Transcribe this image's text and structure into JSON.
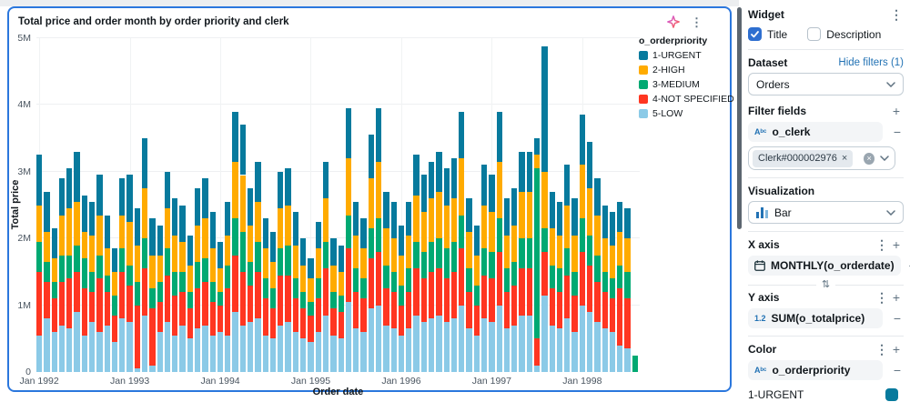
{
  "colors": {
    "selection_border": "#2b77dd",
    "link_blue": "#2272b4",
    "checkbox_blue": "#2e6fd0",
    "grid": "#eef0f2",
    "axis_text": "#4a5560"
  },
  "icons": {
    "kebab": "⋮",
    "plus": "+",
    "minus": "−",
    "swap": "⇅",
    "check": "✓",
    "string_type": "Aᵇᶜ",
    "numeric_type": "1.2",
    "chip_remove": "×",
    "clear": "×"
  },
  "chart_data": {
    "type": "bar",
    "stacked": true,
    "title": "Total price and order month by order priority and clerk",
    "xlabel": "Order date",
    "ylabel": "Total price",
    "legend_title": "o_orderpriority",
    "legend_position": "top-right",
    "grid": true,
    "x_range": [
      "Jan 1992",
      "Aug 1998"
    ],
    "n_months": 80,
    "x_tick_labels": [
      "Jan 1992",
      "Jan 1993",
      "Jan 1994",
      "Jan 1995",
      "Jan 1996",
      "Jan 1997",
      "Jan 1998"
    ],
    "x_tick_positions": [
      0,
      12,
      24,
      36,
      48,
      60,
      72
    ],
    "y_tick_labels": [
      "0",
      "1M",
      "2M",
      "3M",
      "4M",
      "5M"
    ],
    "y_tick_values": [
      0,
      1,
      2,
      3,
      4,
      5
    ],
    "ylim": [
      0,
      5
    ],
    "values_unit": "millions (M) of total price",
    "stack_order_bottom_to_top": [
      "5-LOW",
      "4-NOT SPECIFIED",
      "3-MEDIUM",
      "2-HIGH",
      "1-URGENT"
    ],
    "series": [
      {
        "name": "1-URGENT",
        "color": "#077A9D",
        "values": [
          0.75,
          0.6,
          0.45,
          0.55,
          0.6,
          0.75,
          0.55,
          0.5,
          0.6,
          0.5,
          0.35,
          0.55,
          0.7,
          0.55,
          0.75,
          0.55,
          0.45,
          0.55,
          0.55,
          0.55,
          0.45,
          0.55,
          0.6,
          0.55,
          0.4,
          0.5,
          0.75,
          0.75,
          0.55,
          0.6,
          0.45,
          0.45,
          0.55,
          0.55,
          0.5,
          0.4,
          0.3,
          0.4,
          0.55,
          0.4,
          0.4,
          0.75,
          0.5,
          0.45,
          0.65,
          0.8,
          0.55,
          0.55,
          0.45,
          0.5,
          0.6,
          0.55,
          0.55,
          0.6,
          0.55,
          0.6,
          0.7,
          0.5,
          0.45,
          0.6,
          0.55,
          0.75,
          0.55,
          0.55,
          0.6,
          0.6,
          0.25,
          1.88,
          0.55,
          0.5,
          0.6,
          0.55,
          0.75,
          0.7,
          0.55,
          0.5,
          0.5,
          0.45,
          0.45,
          0.0
        ]
      },
      {
        "name": "2-HIGH",
        "color": "#FFAB00",
        "values": [
          0.55,
          0.45,
          0.35,
          0.6,
          0.7,
          0.65,
          0.4,
          0.55,
          0.6,
          0.4,
          0.35,
          0.5,
          0.65,
          0.55,
          0.75,
          0.5,
          0.4,
          0.6,
          0.55,
          0.45,
          0.4,
          0.55,
          0.6,
          0.5,
          0.35,
          0.45,
          0.85,
          0.85,
          0.55,
          0.6,
          0.45,
          0.4,
          0.6,
          0.6,
          0.5,
          0.4,
          0.35,
          0.45,
          0.65,
          0.4,
          0.35,
          0.85,
          0.5,
          0.45,
          0.75,
          0.85,
          0.55,
          0.5,
          0.45,
          0.5,
          0.7,
          0.6,
          0.65,
          0.7,
          0.65,
          0.65,
          0.85,
          0.55,
          0.45,
          0.65,
          0.6,
          0.85,
          0.5,
          0.55,
          0.7,
          0.7,
          0.2,
          0.85,
          0.55,
          0.5,
          0.65,
          0.55,
          0.8,
          0.7,
          0.6,
          0.5,
          0.5,
          0.5,
          0.5,
          0.0
        ]
      },
      {
        "name": "3-MEDIUM",
        "color": "#00A972",
        "values": [
          0.45,
          0.3,
          0.25,
          0.4,
          0.35,
          0.4,
          0.45,
          0.3,
          0.35,
          0.25,
          0.3,
          0.35,
          0.3,
          0.35,
          0.45,
          0.3,
          0.3,
          0.4,
          0.35,
          0.3,
          0.25,
          0.4,
          0.35,
          0.3,
          0.2,
          0.35,
          0.55,
          0.6,
          0.35,
          0.45,
          0.3,
          0.3,
          0.4,
          0.45,
          0.3,
          0.25,
          0.2,
          0.3,
          0.4,
          0.25,
          0.25,
          0.5,
          0.35,
          0.3,
          0.45,
          0.5,
          0.35,
          0.3,
          0.3,
          0.35,
          0.4,
          0.4,
          0.45,
          0.45,
          0.45,
          0.45,
          0.5,
          0.35,
          0.3,
          0.4,
          0.4,
          0.5,
          0.35,
          0.35,
          0.45,
          0.45,
          2.55,
          0.35,
          0.35,
          0.35,
          0.4,
          0.35,
          0.5,
          0.45,
          0.4,
          0.3,
          0.3,
          0.35,
          0.4,
          0.25
        ]
      },
      {
        "name": "4-NOT SPECIFIED",
        "color": "#FF3621",
        "values": [
          0.95,
          0.55,
          0.5,
          0.65,
          0.75,
          0.6,
          0.7,
          0.45,
          0.8,
          0.5,
          0.4,
          0.7,
          0.55,
          0.95,
          0.7,
          0.85,
          0.45,
          0.7,
          0.6,
          0.5,
          0.45,
          0.6,
          0.65,
          0.5,
          0.4,
          0.7,
          0.85,
          0.8,
          0.55,
          0.7,
          0.55,
          0.45,
          0.75,
          0.7,
          0.5,
          0.45,
          0.4,
          0.5,
          0.7,
          0.4,
          0.4,
          0.8,
          0.55,
          0.5,
          0.75,
          0.8,
          0.55,
          0.55,
          0.45,
          0.55,
          0.7,
          0.65,
          0.7,
          0.7,
          0.65,
          0.7,
          0.85,
          0.55,
          0.45,
          0.65,
          0.65,
          0.8,
          0.55,
          0.6,
          0.7,
          0.7,
          0.4,
          0.65,
          0.55,
          0.55,
          0.65,
          0.55,
          0.8,
          0.7,
          0.6,
          0.55,
          0.5,
          0.85,
          0.75,
          0.0
        ]
      },
      {
        "name": "5-LOW",
        "color": "#8BCAE7",
        "values": [
          0.55,
          0.8,
          0.6,
          0.7,
          0.65,
          0.9,
          0.55,
          0.75,
          0.6,
          0.7,
          0.45,
          0.8,
          0.75,
          0.05,
          0.85,
          0.1,
          0.6,
          0.75,
          0.55,
          0.7,
          0.5,
          0.65,
          0.7,
          0.55,
          0.6,
          0.55,
          0.9,
          0.7,
          0.75,
          0.8,
          0.55,
          0.5,
          0.7,
          0.75,
          0.6,
          0.5,
          0.45,
          0.6,
          0.85,
          0.55,
          0.5,
          1.05,
          0.65,
          0.6,
          0.95,
          1.0,
          0.7,
          0.65,
          0.55,
          0.65,
          0.85,
          0.75,
          0.8,
          0.85,
          0.75,
          0.8,
          1.0,
          0.65,
          0.55,
          0.8,
          0.75,
          1.0,
          0.65,
          0.7,
          0.85,
          0.85,
          0.1,
          1.15,
          0.7,
          0.65,
          0.8,
          0.6,
          1.0,
          0.9,
          0.75,
          0.65,
          0.6,
          0.4,
          0.35,
          0.0
        ]
      }
    ]
  },
  "sidebar": {
    "title": "Widget",
    "widget": {
      "title_label": "Title",
      "description_label": "Description",
      "title_checked": true,
      "description_checked": false
    },
    "dataset": {
      "label": "Dataset",
      "link": "Hide filters (1)",
      "selected": "Orders"
    },
    "filter_fields": {
      "label": "Filter fields",
      "field": "o_clerk",
      "chip": "Clerk#000002976"
    },
    "visualization": {
      "label": "Visualization",
      "selected": "Bar"
    },
    "x_axis": {
      "label": "X axis",
      "field": "MONTHLY(o_orderdate)"
    },
    "y_axis": {
      "label": "Y axis",
      "field": "SUM(o_totalprice)"
    },
    "color": {
      "label": "Color",
      "field": "o_orderpriority",
      "first_item": "1-URGENT",
      "first_color": "#077A9D"
    }
  }
}
